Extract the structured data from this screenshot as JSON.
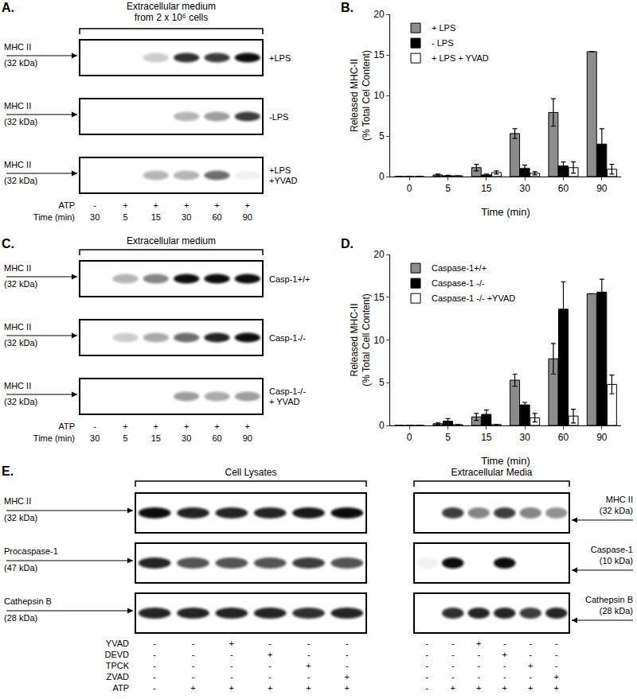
{
  "chart_data": [
    {
      "type": "bar",
      "panel": "B",
      "xlabel": "Time (min)",
      "ylabel": [
        "Released MHC-II",
        "(% Total Cel Content)"
      ],
      "categories": [
        "0",
        "5",
        "15",
        "30",
        "60",
        "90"
      ],
      "series": [
        {
          "name": "+ LPS",
          "color": "#8c8c8c",
          "values": [
            0,
            0.2,
            1.1,
            5.3,
            7.9,
            15.4
          ],
          "errors": [
            0,
            0.1,
            0.4,
            0.6,
            1.7,
            0
          ]
        },
        {
          "name": "- LPS",
          "color": "#000000",
          "values": [
            0,
            0.1,
            0.2,
            1.0,
            1.3,
            4.0
          ],
          "errors": [
            0,
            0.05,
            0.1,
            0.4,
            0.5,
            1.9
          ]
        },
        {
          "name": "+ LPS + YVAD",
          "color": "#ffffff",
          "values": [
            0,
            0.1,
            0.5,
            0.4,
            1.1,
            0.9
          ],
          "errors": [
            0,
            0,
            0.2,
            0.2,
            0.7,
            0.6
          ]
        }
      ],
      "ylim": [
        0,
        20
      ],
      "yticks": [
        0,
        5,
        10,
        15,
        20
      ],
      "legend": "top-left",
      "grid": false
    },
    {
      "type": "bar",
      "panel": "D",
      "xlabel": "Time (min)",
      "ylabel": [
        "Released MHC-II",
        "(% Total Cell Content)"
      ],
      "categories": [
        "0",
        "5",
        "15",
        "30",
        "60",
        "90"
      ],
      "series": [
        {
          "name": "Caspase-1+/+",
          "color": "#8c8c8c",
          "values": [
            0,
            0.2,
            1.0,
            5.3,
            7.8,
            15.4
          ],
          "errors": [
            0,
            0.1,
            0.4,
            0.7,
            1.8,
            0
          ]
        },
        {
          "name": "Caspase-1 -/-",
          "color": "#000000",
          "values": [
            0,
            0.5,
            1.3,
            2.4,
            13.6,
            15.6
          ],
          "errors": [
            0,
            0.3,
            0.5,
            0.3,
            3.2,
            1.5
          ]
        },
        {
          "name": "Caspase-1 -/- +YVAD",
          "color": "#ffffff",
          "values": [
            0,
            0.1,
            0.1,
            0.9,
            1.1,
            4.8
          ],
          "errors": [
            0,
            0,
            0,
            0.5,
            0.8,
            1.1
          ]
        }
      ],
      "ylim": [
        0,
        20
      ],
      "yticks": [
        0,
        5,
        10,
        15,
        20
      ],
      "legend": "top-left",
      "grid": false
    }
  ],
  "panel_labels": {
    "A": "A.",
    "B": "B.",
    "C": "C.",
    "D": "D.",
    "E": "E."
  },
  "blot_panels": {
    "A": {
      "header": [
        "Extracellular medium",
        "from 2 x 10⁶ cells"
      ],
      "band_label": [
        "MHC II",
        "(32 kDa)"
      ],
      "rows": [
        {
          "label": [
            "+LPS"
          ],
          "bands": [
            0,
            0,
            0.2,
            0.85,
            0.8,
            1
          ]
        },
        {
          "label": [
            "-LPS"
          ],
          "bands": [
            0,
            0,
            0,
            0.3,
            0.4,
            0.8
          ]
        },
        {
          "label": [
            "+LPS",
            "+YVAD"
          ],
          "bands": [
            0,
            0,
            0.3,
            0.3,
            0.6,
            0.05
          ]
        }
      ],
      "lane_rows": [
        {
          "label": "ATP",
          "values": [
            "-",
            "+",
            "+",
            "+",
            "+",
            "+"
          ]
        },
        {
          "label": "Time (min)",
          "values": [
            30,
            5,
            15,
            30,
            60,
            90
          ]
        }
      ]
    },
    "C": {
      "header": [
        "Extracellular medium"
      ],
      "band_label": [
        "MHC II",
        "(32 kDa)"
      ],
      "rows": [
        {
          "label": [
            "Casp-1+/+"
          ],
          "bands": [
            0,
            0.3,
            0.5,
            1,
            1,
            1
          ]
        },
        {
          "label": [
            "Casp-1-/-"
          ],
          "bands": [
            0,
            0.2,
            0.35,
            0.6,
            0.9,
            1
          ]
        },
        {
          "label": [
            "Casp-1-/-",
            "+ YVAD"
          ],
          "bands": [
            0,
            0,
            0,
            0.4,
            0.35,
            0.4
          ]
        }
      ],
      "lane_rows": [
        {
          "label": "ATP",
          "values": [
            "-",
            "+",
            "+",
            "+",
            "+",
            "+"
          ]
        },
        {
          "label": "Time (min)",
          "values": [
            30,
            5,
            15,
            30,
            60,
            90
          ]
        }
      ]
    },
    "E": {
      "groups": [
        {
          "header": "Cell Lysates",
          "rows": [
            {
              "label": [
                "MHC II",
                "(32 kDa)"
              ],
              "bands": [
                1,
                0.9,
                0.9,
                0.9,
                0.95,
                1
              ]
            },
            {
              "label": [
                "Procaspase-1",
                "(47 kDa)"
              ],
              "bands": [
                0.9,
                0.7,
                0.7,
                0.7,
                0.8,
                0.7
              ]
            },
            {
              "label": [
                "Cathepsin B",
                "(28 kDa)"
              ],
              "bands": [
                0.9,
                0.9,
                0.9,
                0.9,
                0.85,
                0.9
              ]
            }
          ]
        },
        {
          "header": "Extracellular Media",
          "rows": [
            {
              "label": [
                "MHC II",
                "(32 kDa)"
              ],
              "bands": [
                0,
                0.8,
                0.5,
                0.8,
                0.5,
                0.45
              ]
            },
            {
              "label": [
                "Caspase-1",
                "(10 kDa)"
              ],
              "bands": [
                0.05,
                1,
                0,
                1,
                0,
                0
              ]
            },
            {
              "label": [
                "Cathepsin B",
                "(28 kDa)"
              ],
              "bands": [
                0,
                0.85,
                0.9,
                0.9,
                0.8,
                0.9
              ]
            }
          ]
        }
      ],
      "treatments": [
        {
          "label": "YVAD",
          "values": [
            "-",
            "-",
            "+",
            "-",
            "-",
            "-"
          ]
        },
        {
          "label": "DEVD",
          "values": [
            "-",
            "-",
            "-",
            "+",
            "-",
            "-"
          ]
        },
        {
          "label": "TPCK",
          "values": [
            "-",
            "-",
            "-",
            "-",
            "+",
            "-"
          ]
        },
        {
          "label": "ZVAD",
          "values": [
            "-",
            "-",
            "-",
            "-",
            "-",
            "+"
          ]
        },
        {
          "label": "ATP",
          "values": [
            "-",
            "+",
            "+",
            "+",
            "+",
            "+"
          ]
        }
      ]
    }
  }
}
